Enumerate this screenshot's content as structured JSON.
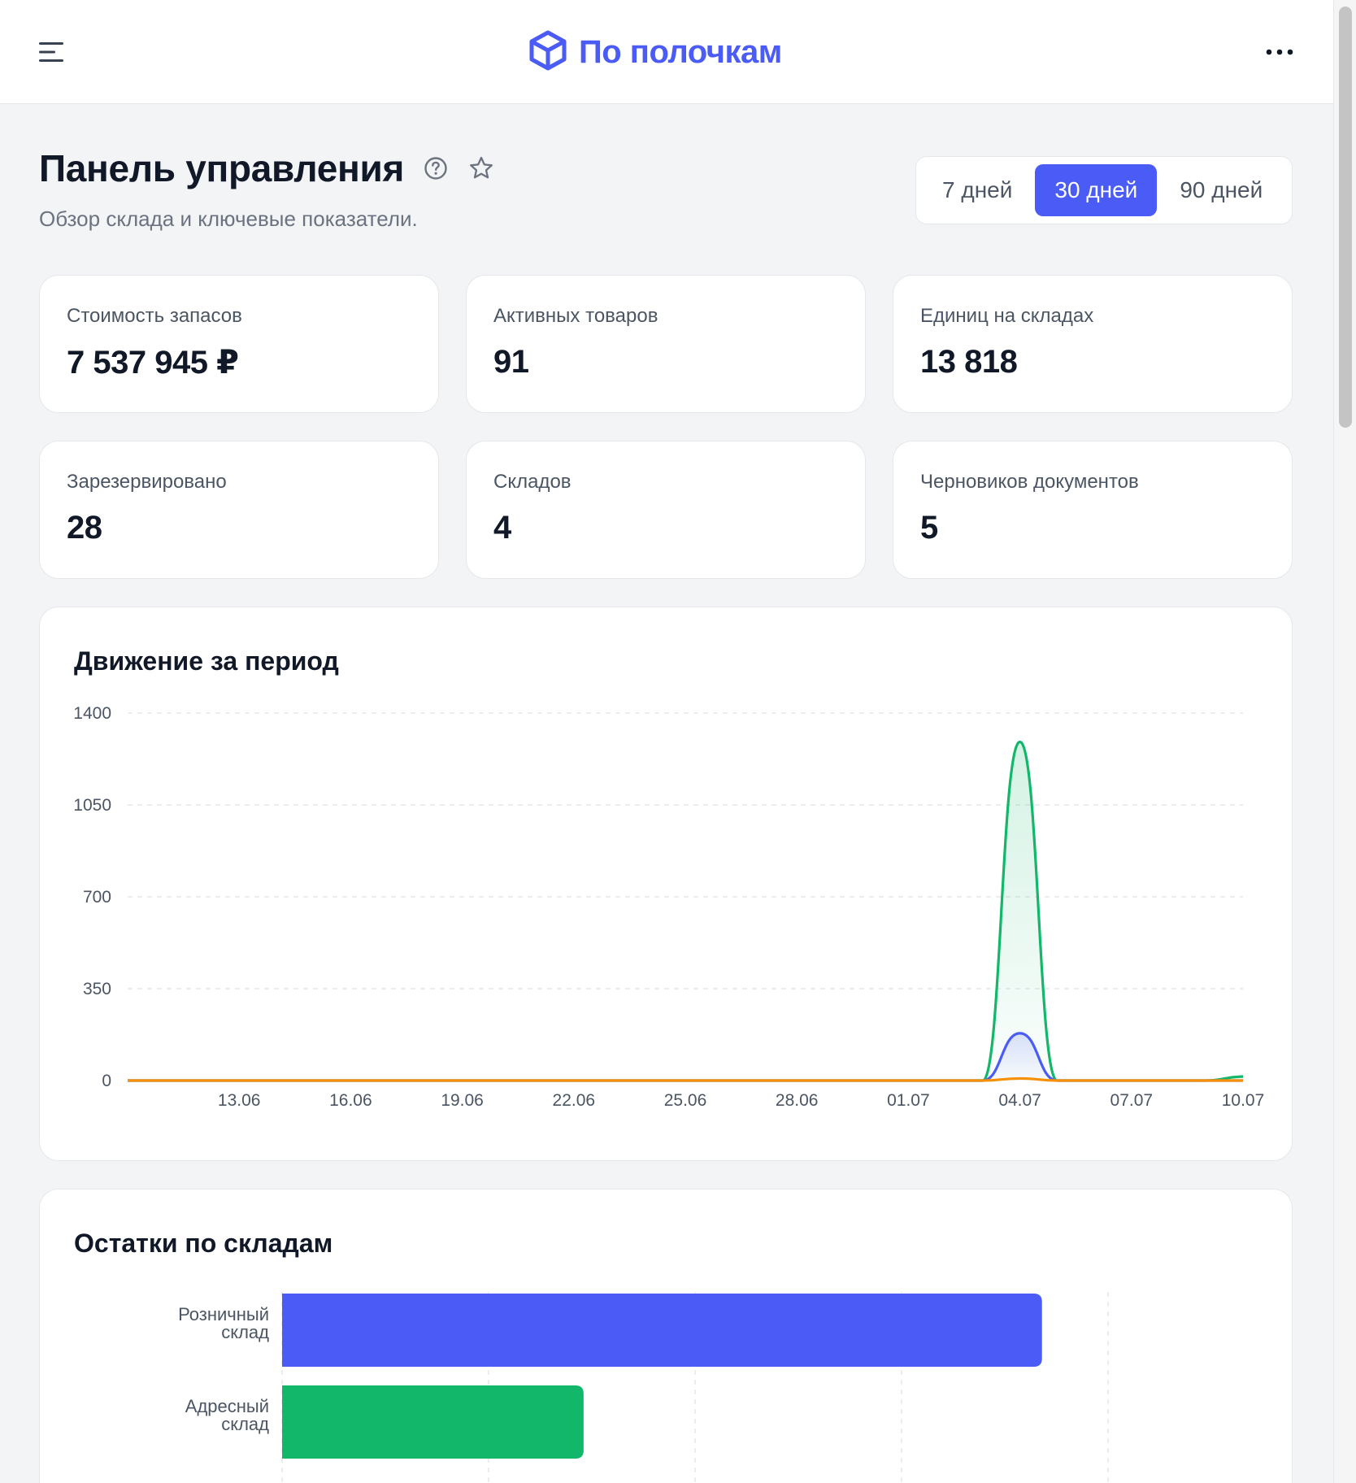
{
  "header": {
    "menu_icon": "hamburger-menu-icon",
    "logo_icon": "box-cube-icon",
    "brand_name": "По полочкам",
    "more_icon": "more-horizontal-icon"
  },
  "page": {
    "title": "Панель управления",
    "help_icon": "question-circle-icon",
    "favorite_icon": "star-outline-icon",
    "subtitle": "Обзор склада и ключевые показатели."
  },
  "period": {
    "options": [
      "7 дней",
      "30 дней",
      "90 дней"
    ],
    "selected": "30 дней"
  },
  "kpis": [
    {
      "label": "Стоимость запасов",
      "value": "7 537 945 ₽"
    },
    {
      "label": "Активных товаров",
      "value": "91"
    },
    {
      "label": "Единиц на складах",
      "value": "13 818"
    },
    {
      "label": "Зарезервировано",
      "value": "28"
    },
    {
      "label": "Складов",
      "value": "4"
    },
    {
      "label": "Черновиков документов",
      "value": "5"
    }
  ],
  "movement_chart": {
    "title": "Движение за период",
    "chart_data": {
      "type": "area",
      "y_ticks": [
        1400,
        1050,
        700,
        350,
        0
      ],
      "ylim": [
        0,
        1400
      ],
      "x_ticks": [
        "13.06",
        "16.06",
        "19.06",
        "22.06",
        "25.06",
        "28.06",
        "01.07",
        "04.07",
        "07.07",
        "10.07"
      ],
      "x": [
        "10.06",
        "11.06",
        "12.06",
        "13.06",
        "14.06",
        "15.06",
        "16.06",
        "17.06",
        "18.06",
        "19.06",
        "20.06",
        "21.06",
        "22.06",
        "23.06",
        "24.06",
        "25.06",
        "26.06",
        "27.06",
        "28.06",
        "29.06",
        "30.06",
        "01.07",
        "02.07",
        "03.07",
        "04.07",
        "05.07",
        "06.07",
        "07.07",
        "08.07",
        "09.07",
        "10.07"
      ],
      "grid": true,
      "colors": {
        "green": "#12b76a",
        "blue": "#4a5cf5",
        "orange": "#f79009"
      },
      "series": [
        {
          "color": "#12b76a",
          "values": [
            0,
            0,
            0,
            0,
            0,
            0,
            0,
            0,
            0,
            0,
            0,
            0,
            0,
            0,
            0,
            0,
            0,
            0,
            0,
            0,
            0,
            0,
            0,
            0,
            1290,
            0,
            0,
            0,
            0,
            0,
            15
          ]
        },
        {
          "color": "#4a5cf5",
          "values": [
            0,
            0,
            0,
            0,
            0,
            0,
            0,
            0,
            0,
            0,
            0,
            0,
            0,
            0,
            0,
            0,
            0,
            0,
            0,
            0,
            0,
            0,
            0,
            0,
            180,
            0,
            0,
            0,
            0,
            0,
            0
          ]
        },
        {
          "color": "#f79009",
          "values": [
            0,
            0,
            0,
            0,
            0,
            0,
            0,
            0,
            0,
            0,
            0,
            0,
            0,
            0,
            0,
            0,
            0,
            0,
            0,
            0,
            0,
            0,
            0,
            0,
            8,
            0,
            0,
            0,
            0,
            0,
            0
          ]
        }
      ]
    }
  },
  "stock_chart": {
    "title": "Остатки по складам",
    "chart_data": {
      "type": "bar",
      "orientation": "horizontal",
      "categories": [
        [
          "Розничный",
          "склад"
        ],
        [
          "Адресный",
          "склад"
        ]
      ],
      "values": [
        9200,
        3650
      ],
      "xlim": [
        0,
        10000
      ],
      "grid": true,
      "colors": [
        "#4a5cf5",
        "#12b76a"
      ]
    }
  }
}
